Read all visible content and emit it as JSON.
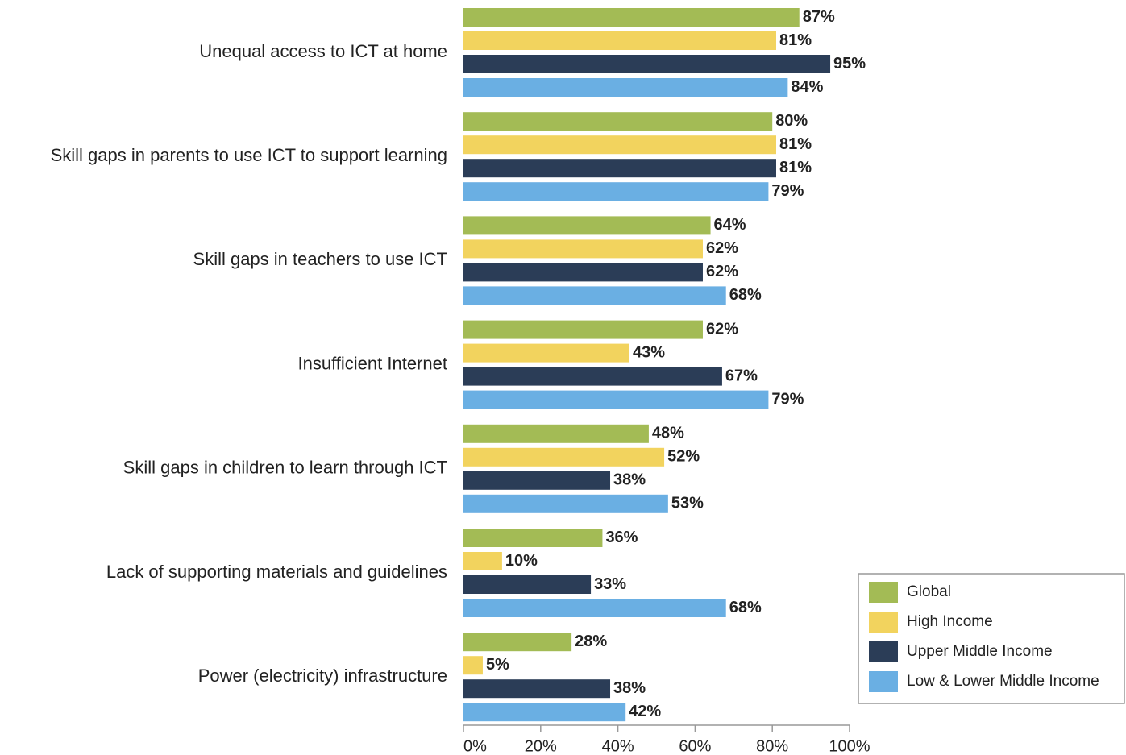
{
  "chart_data": {
    "type": "bar",
    "orientation": "horizontal",
    "categories": [
      "Unequal access to ICT at home",
      "Skill gaps in parents to use ICT to support learning",
      "Skill gaps in teachers to use ICT",
      "Insufficient Internet",
      "Skill gaps in children to learn through ICT",
      "Lack of supporting materials and guidelines",
      "Power (electricity) infrastructure"
    ],
    "series": [
      {
        "name": "Global",
        "color": "#a3bb55",
        "values": [
          87,
          80,
          64,
          62,
          48,
          36,
          28
        ],
        "value_labels": [
          "87%",
          "80%",
          "64%",
          "62%",
          "48%",
          "36%",
          "28%"
        ]
      },
      {
        "name": "High Income",
        "color": "#f2d35e",
        "values": [
          81,
          81,
          62,
          43,
          52,
          10,
          5
        ],
        "value_labels": [
          "81%",
          "81%",
          "62%",
          "43%",
          "52%",
          "10%",
          "5%"
        ]
      },
      {
        "name": "Upper Middle Income",
        "color": "#2b3d57",
        "values": [
          95,
          81,
          62,
          67,
          38,
          33,
          38
        ],
        "value_labels": [
          "95%",
          "81%",
          "62%",
          "67%",
          "38%",
          "33%",
          "38%"
        ]
      },
      {
        "name": "Low & Lower Middle Income",
        "color": "#6aafe3",
        "values": [
          84,
          79,
          68,
          79,
          53,
          68,
          42
        ],
        "value_labels": [
          "84%",
          "79%",
          "68%",
          "79%",
          "53%",
          "68%",
          "42%"
        ]
      }
    ],
    "xlim": [
      0,
      100
    ],
    "xticks": [
      {
        "value": 0,
        "label": "0%"
      },
      {
        "value": 20,
        "label": "20%"
      },
      {
        "value": 40,
        "label": "40%"
      },
      {
        "value": 60,
        "label": "60%"
      },
      {
        "value": 80,
        "label": "80%"
      },
      {
        "value": 100,
        "label": "100%"
      }
    ],
    "legend": "lower right"
  }
}
